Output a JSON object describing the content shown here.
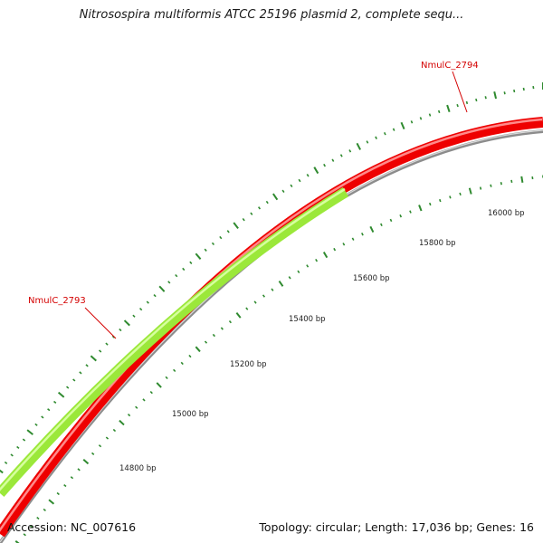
{
  "title": "Nitrosospira multiformis ATCC 25196 plasmid 2, complete sequ...",
  "colors": {
    "backbone": "#8c8c8c",
    "forward_gene": "#ee0000",
    "reverse_gene": "#9be83a",
    "ticks": "#2f8a2f",
    "gene_label": "#d40000"
  },
  "position_ticks": [
    {
      "bp": 14800,
      "label": "14800 bp"
    },
    {
      "bp": 15000,
      "label": "15000 bp"
    },
    {
      "bp": 15200,
      "label": "15200 bp"
    },
    {
      "bp": 15400,
      "label": "15400 bp"
    },
    {
      "bp": 15600,
      "label": "15600 bp"
    },
    {
      "bp": 15800,
      "label": "15800 bp"
    },
    {
      "bp": 16000,
      "label": "16000 bp"
    }
  ],
  "genes": [
    {
      "name": "NmulC_2793",
      "strand": "reverse"
    },
    {
      "name": "NmulC_2794",
      "strand": "forward"
    }
  ],
  "footer": {
    "accession_label": "Accession:",
    "accession": "NC_007616",
    "topology_label": "Topology:",
    "topology": "circular",
    "length_label": "Length:",
    "length": "17,036 bp",
    "genes_label": "Genes:",
    "genes": "16"
  }
}
